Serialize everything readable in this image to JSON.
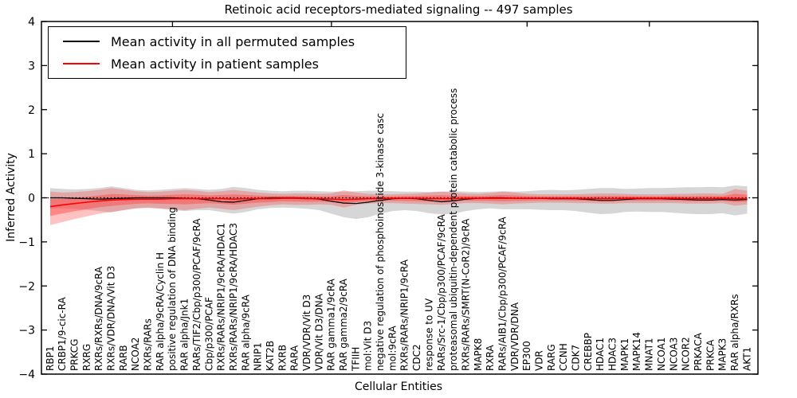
{
  "figure": {
    "title": "Retinoic acid receptors-mediated signaling -- 497 samples",
    "xlabel": "Cellular Entities",
    "ylabel": "Inferred Activity"
  },
  "legend": {
    "items": [
      {
        "label": "Mean activity in all permuted samples",
        "color": "#000000"
      },
      {
        "label": "Mean activity in patient samples",
        "color": "#ff0000"
      }
    ]
  },
  "chart_data": {
    "type": "line",
    "title": "Retinoic acid receptors-mediated signaling -- 497 samples",
    "xlabel": "Cellular Entities",
    "ylabel": "Inferred Activity",
    "ylim": [
      -4,
      4
    ],
    "yticks": [
      4,
      3,
      2,
      1,
      0,
      -1,
      -2,
      -3,
      -4
    ],
    "ytick_labels": [
      "4",
      "3",
      "2",
      "1",
      "0",
      "−1",
      "−2",
      "−3",
      "−4"
    ],
    "grid": false,
    "legend_position": "upper left",
    "top_tick_indices": [
      10,
      23,
      39,
      49
    ],
    "categories": [
      "RBP1",
      "CRBP1/9-cic-RA",
      "PRKCG",
      "RXRG",
      "RXRs/RXRs/DNA/9cRA",
      "RXRs/VDR/DNA/Vit D3",
      "RARB",
      "NCOA2",
      "RXRs/RARs",
      "RAR alpha/9cRA/Cyclin H",
      "positive regulation of DNA binding",
      "RAR alpha/Jnk1",
      "RARs/TIF2/Cbp/p300/PCAF/9cRA",
      "Cbp/p300/PCAF",
      "RXRs/RARs/NRIP1/9cRA/HDAC1",
      "RXRs/RARs/NRIP1/9cRA/HDAC3",
      "RAR alpha/9cRA",
      "NRIP1",
      "KAT2B",
      "RXRB",
      "RARA",
      "VDR/VDR/Vit D3",
      "VDR/Vit D3/DNA",
      "RAR gamma1/9cRA",
      "RAR gamma2/9cRA",
      "TFIIH",
      "mol:Vit D3",
      "negative regulation of phosphoinositide 3-kinase casc",
      "mol:9cRA",
      "RXRs/RARs/NRIP1/9cRA",
      "CDC2",
      "response to UV",
      "RARs/Src-1/Cbp/p300/PCAF/9cRA",
      "proteasomal ubiquitin-dependent protein catabolic process",
      "RXRs/RARs/SMRT(N-CoR2)/9cRA",
      "MAPK8",
      "RXRA",
      "RARs/AIB1/Cbp/p300/PCAF/9cRA",
      "VDR/VDR/DNA",
      "EP300",
      "VDR",
      "RARG",
      "CCNH",
      "CDK7",
      "CREBBP",
      "HDAC1",
      "HDAC3",
      "MAPK1",
      "MAPK14",
      "MNAT1",
      "NCOA1",
      "NCOA3",
      "NCOR2",
      "PRKACA",
      "PRKCA",
      "MAPK3",
      "RAR alpha/RXRs",
      "AKT1"
    ],
    "series": [
      {
        "name": "Mean activity in all permuted samples",
        "color": "#000000",
        "values": [
          0.0,
          0.0,
          -0.01,
          -0.02,
          -0.03,
          -0.02,
          -0.01,
          0.0,
          0.0,
          0.0,
          0.0,
          -0.01,
          -0.02,
          -0.05,
          -0.09,
          -0.1,
          -0.06,
          -0.02,
          0.0,
          0.0,
          0.0,
          -0.01,
          -0.03,
          -0.08,
          -0.12,
          -0.13,
          -0.1,
          -0.06,
          -0.02,
          -0.01,
          -0.02,
          -0.06,
          -0.09,
          -0.07,
          -0.03,
          -0.01,
          0.0,
          0.0,
          -0.01,
          -0.01,
          -0.01,
          -0.02,
          -0.02,
          -0.02,
          -0.04,
          -0.06,
          -0.06,
          -0.04,
          -0.02,
          -0.02,
          -0.02,
          -0.03,
          -0.04,
          -0.05,
          -0.05,
          -0.04,
          -0.05,
          -0.04
        ]
      },
      {
        "name": "Mean activity in patient samples",
        "color": "#ff0000",
        "values": [
          -0.2,
          -0.16,
          -0.13,
          -0.1,
          -0.07,
          -0.05,
          -0.04,
          -0.03,
          -0.03,
          -0.03,
          -0.02,
          -0.02,
          -0.02,
          -0.02,
          -0.02,
          -0.03,
          -0.02,
          -0.02,
          -0.02,
          -0.01,
          -0.01,
          -0.02,
          -0.02,
          -0.03,
          -0.04,
          -0.03,
          -0.02,
          -0.02,
          -0.01,
          -0.01,
          -0.01,
          -0.02,
          -0.02,
          -0.02,
          -0.01,
          -0.01,
          -0.01,
          -0.01,
          -0.01,
          -0.01,
          -0.01,
          -0.01,
          -0.01,
          -0.01,
          -0.02,
          -0.02,
          -0.02,
          -0.01,
          -0.01,
          -0.01,
          -0.01,
          -0.01,
          -0.02,
          -0.02,
          -0.02,
          -0.01,
          -0.02,
          -0.02
        ]
      }
    ],
    "bands": [
      {
        "name": "permuted-samples-range",
        "color": "#999999",
        "opacity": 0.4,
        "upper": [
          0.22,
          0.2,
          0.19,
          0.2,
          0.22,
          0.26,
          0.22,
          0.18,
          0.17,
          0.18,
          0.2,
          0.22,
          0.2,
          0.18,
          0.2,
          0.25,
          0.22,
          0.18,
          0.16,
          0.15,
          0.16,
          0.16,
          0.15,
          0.14,
          0.14,
          0.15,
          0.16,
          0.16,
          0.15,
          0.14,
          0.14,
          0.13,
          0.14,
          0.15,
          0.14,
          0.13,
          0.14,
          0.15,
          0.14,
          0.15,
          0.17,
          0.18,
          0.17,
          0.18,
          0.2,
          0.22,
          0.22,
          0.2,
          0.21,
          0.22,
          0.22,
          0.23,
          0.24,
          0.24,
          0.25,
          0.24,
          0.28,
          0.26
        ],
        "lower": [
          -0.25,
          -0.24,
          -0.25,
          -0.27,
          -0.3,
          -0.33,
          -0.28,
          -0.24,
          -0.23,
          -0.25,
          -0.28,
          -0.3,
          -0.28,
          -0.28,
          -0.32,
          -0.36,
          -0.32,
          -0.26,
          -0.23,
          -0.22,
          -0.23,
          -0.25,
          -0.28,
          -0.36,
          -0.44,
          -0.48,
          -0.44,
          -0.36,
          -0.3,
          -0.28,
          -0.3,
          -0.35,
          -0.38,
          -0.36,
          -0.3,
          -0.26,
          -0.24,
          -0.26,
          -0.26,
          -0.26,
          -0.27,
          -0.28,
          -0.28,
          -0.3,
          -0.34,
          -0.37,
          -0.36,
          -0.32,
          -0.31,
          -0.32,
          -0.32,
          -0.34,
          -0.36,
          -0.37,
          -0.37,
          -0.35,
          -0.4,
          -0.36
        ]
      },
      {
        "name": "patient-samples-range",
        "color": "#ff4040",
        "opacity": 0.32,
        "inner_scale": 0.5,
        "inner_opacity": 0.45,
        "upper": [
          0.14,
          0.12,
          0.13,
          0.15,
          0.18,
          0.22,
          0.19,
          0.15,
          0.13,
          0.14,
          0.16,
          0.18,
          0.16,
          0.13,
          0.15,
          0.18,
          0.15,
          0.12,
          0.1,
          0.09,
          0.1,
          0.1,
          0.09,
          0.1,
          0.17,
          0.12,
          0.09,
          0.08,
          0.08,
          0.09,
          0.1,
          0.12,
          0.14,
          0.12,
          0.1,
          0.09,
          0.11,
          0.14,
          0.12,
          0.09,
          0.08,
          0.08,
          0.08,
          0.08,
          0.09,
          0.1,
          0.1,
          0.09,
          0.08,
          0.08,
          0.08,
          0.09,
          0.09,
          0.1,
          0.1,
          0.09,
          0.2,
          0.16
        ],
        "lower": [
          -0.62,
          -0.55,
          -0.48,
          -0.42,
          -0.36,
          -0.32,
          -0.28,
          -0.24,
          -0.22,
          -0.24,
          -0.26,
          -0.28,
          -0.25,
          -0.22,
          -0.25,
          -0.28,
          -0.24,
          -0.2,
          -0.17,
          -0.15,
          -0.16,
          -0.16,
          -0.15,
          -0.16,
          -0.22,
          -0.16,
          -0.13,
          -0.12,
          -0.12,
          -0.13,
          -0.14,
          -0.15,
          -0.16,
          -0.14,
          -0.12,
          -0.12,
          -0.13,
          -0.15,
          -0.13,
          -0.12,
          -0.11,
          -0.11,
          -0.11,
          -0.12,
          -0.12,
          -0.13,
          -0.13,
          -0.12,
          -0.12,
          -0.12,
          -0.12,
          -0.12,
          -0.13,
          -0.13,
          -0.13,
          -0.12,
          -0.18,
          -0.15
        ]
      }
    ],
    "zero_line": {
      "style": "dotted",
      "color": "#000000",
      "y": 0
    }
  }
}
